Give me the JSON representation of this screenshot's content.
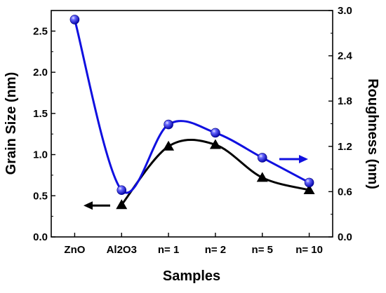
{
  "chart_data": {
    "type": "line",
    "categories": [
      "ZnO",
      "Al2O3",
      "n= 1",
      "n= 2",
      "n= 5",
      "n= 10"
    ],
    "xlabel": "Samples",
    "ylabel_left": "Grain Size (nm)",
    "ylabel_right": "Roughness (nm)",
    "ylim_left": [
      0.0,
      2.75
    ],
    "ylim_right": [
      0.0,
      3.0
    ],
    "yticks_left": [
      "0.0",
      "0.5",
      "1.0",
      "1.5",
      "2.0",
      "2.5"
    ],
    "yticks_right": [
      "0.0",
      "0.6",
      "1.2",
      "1.8",
      "2.4",
      "3.0"
    ],
    "grid": false,
    "series": [
      {
        "axis": "left",
        "marker": "triangle",
        "color": "#000000",
        "values": [
          null,
          0.39,
          1.1,
          1.12,
          0.72,
          0.57
        ]
      },
      {
        "axis": "right",
        "marker": "sphere",
        "color": "#1010e0",
        "values": [
          2.88,
          0.62,
          1.49,
          1.38,
          1.05,
          0.72
        ]
      }
    ],
    "annotations": [
      {
        "type": "arrow",
        "direction": "left",
        "color": "#000000",
        "points_to": "left axis"
      },
      {
        "type": "arrow",
        "direction": "right",
        "color": "#1010e0",
        "points_to": "right axis"
      }
    ]
  }
}
